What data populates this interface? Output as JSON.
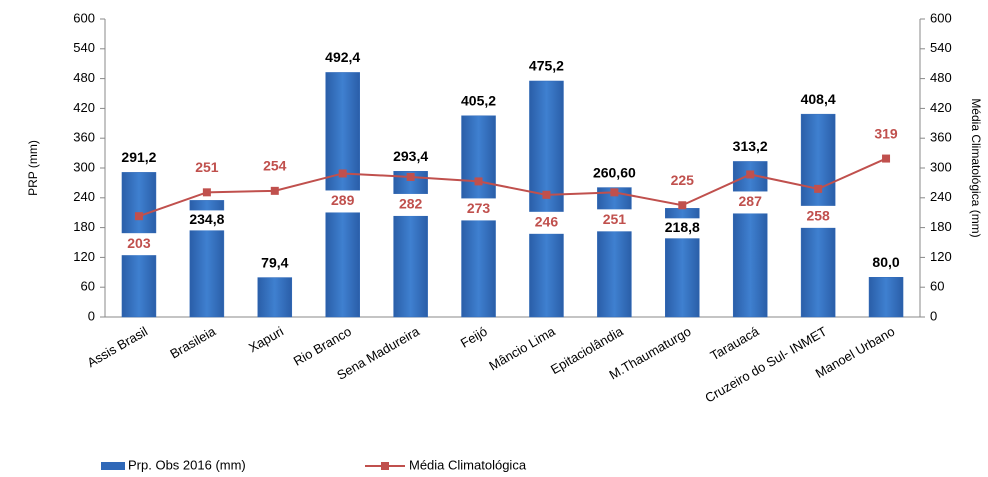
{
  "chart_data": {
    "type": "bar",
    "y_label": "PRP (mm)",
    "y2_label": "Média Climatológica (mm)",
    "categories": [
      "Assis Brasil",
      "Brasileia",
      "Xapuri",
      "Rio Branco",
      "Sena Madureira",
      "Feijó",
      "Mâncio Lima",
      "Epitaciolândia",
      "M.Thaumaturgo",
      "Tarauacá",
      "Cruzeiro do Sul- INMET",
      "Manoel Urbano"
    ],
    "series": [
      {
        "name": "Prp. Obs 2016  (mm)",
        "type": "bar",
        "color": "#2f68b8",
        "values": [
          291.2,
          234.8,
          79.4,
          492.4,
          293.4,
          405.2,
          475.2,
          260.6,
          218.8,
          313.2,
          408.4,
          80.0
        ],
        "value_labels": [
          "291,2",
          "234,8",
          "79,4",
          "492,4",
          "293,4",
          "405,2",
          "475,2",
          "260,60",
          "218,8",
          "313,2",
          "408,4",
          "80,0"
        ]
      },
      {
        "name": "Média Climatológica",
        "type": "line",
        "axis": "y2",
        "color": "#c0504d",
        "values": [
          203,
          251,
          254,
          289,
          282,
          273,
          246,
          251,
          225,
          287,
          258,
          319
        ]
      }
    ],
    "ylim": [
      0,
      600
    ],
    "yticks": [
      0,
      60,
      120,
      180,
      240,
      300,
      360,
      420,
      480,
      540,
      600
    ],
    "y2lim": [
      0,
      600
    ],
    "y2ticks": [
      0,
      60,
      120,
      180,
      240,
      300,
      360,
      420,
      480,
      540,
      600
    ],
    "legend": "bottom-left"
  }
}
